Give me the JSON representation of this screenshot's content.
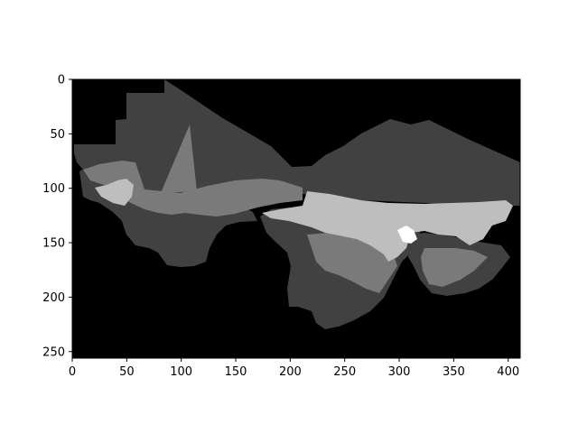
{
  "image_plot": {
    "colormap": "gray",
    "image_shape": [
      256,
      411
    ],
    "x_axis": {
      "range": [
        0,
        411
      ],
      "ticks": [
        {
          "value": 0,
          "label": "0"
        },
        {
          "value": 50,
          "label": "50"
        },
        {
          "value": 100,
          "label": "100"
        },
        {
          "value": 150,
          "label": "150"
        },
        {
          "value": 200,
          "label": "200"
        },
        {
          "value": 250,
          "label": "250"
        },
        {
          "value": 300,
          "label": "300"
        },
        {
          "value": 350,
          "label": "350"
        },
        {
          "value": 400,
          "label": "400"
        }
      ]
    },
    "y_axis": {
      "range": [
        0,
        256
      ],
      "inverted": true,
      "ticks": [
        {
          "value": 0,
          "label": "0"
        },
        {
          "value": 50,
          "label": "50"
        },
        {
          "value": 100,
          "label": "100"
        },
        {
          "value": 150,
          "label": "150"
        },
        {
          "value": 200,
          "label": "200"
        },
        {
          "value": 250,
          "label": "250"
        }
      ]
    },
    "colors": {
      "background": "#000000",
      "dark_gray": "#414141",
      "mid_gray": "#7a7a7a",
      "light_gray": "#bebebe",
      "white": "#ffffff"
    }
  }
}
